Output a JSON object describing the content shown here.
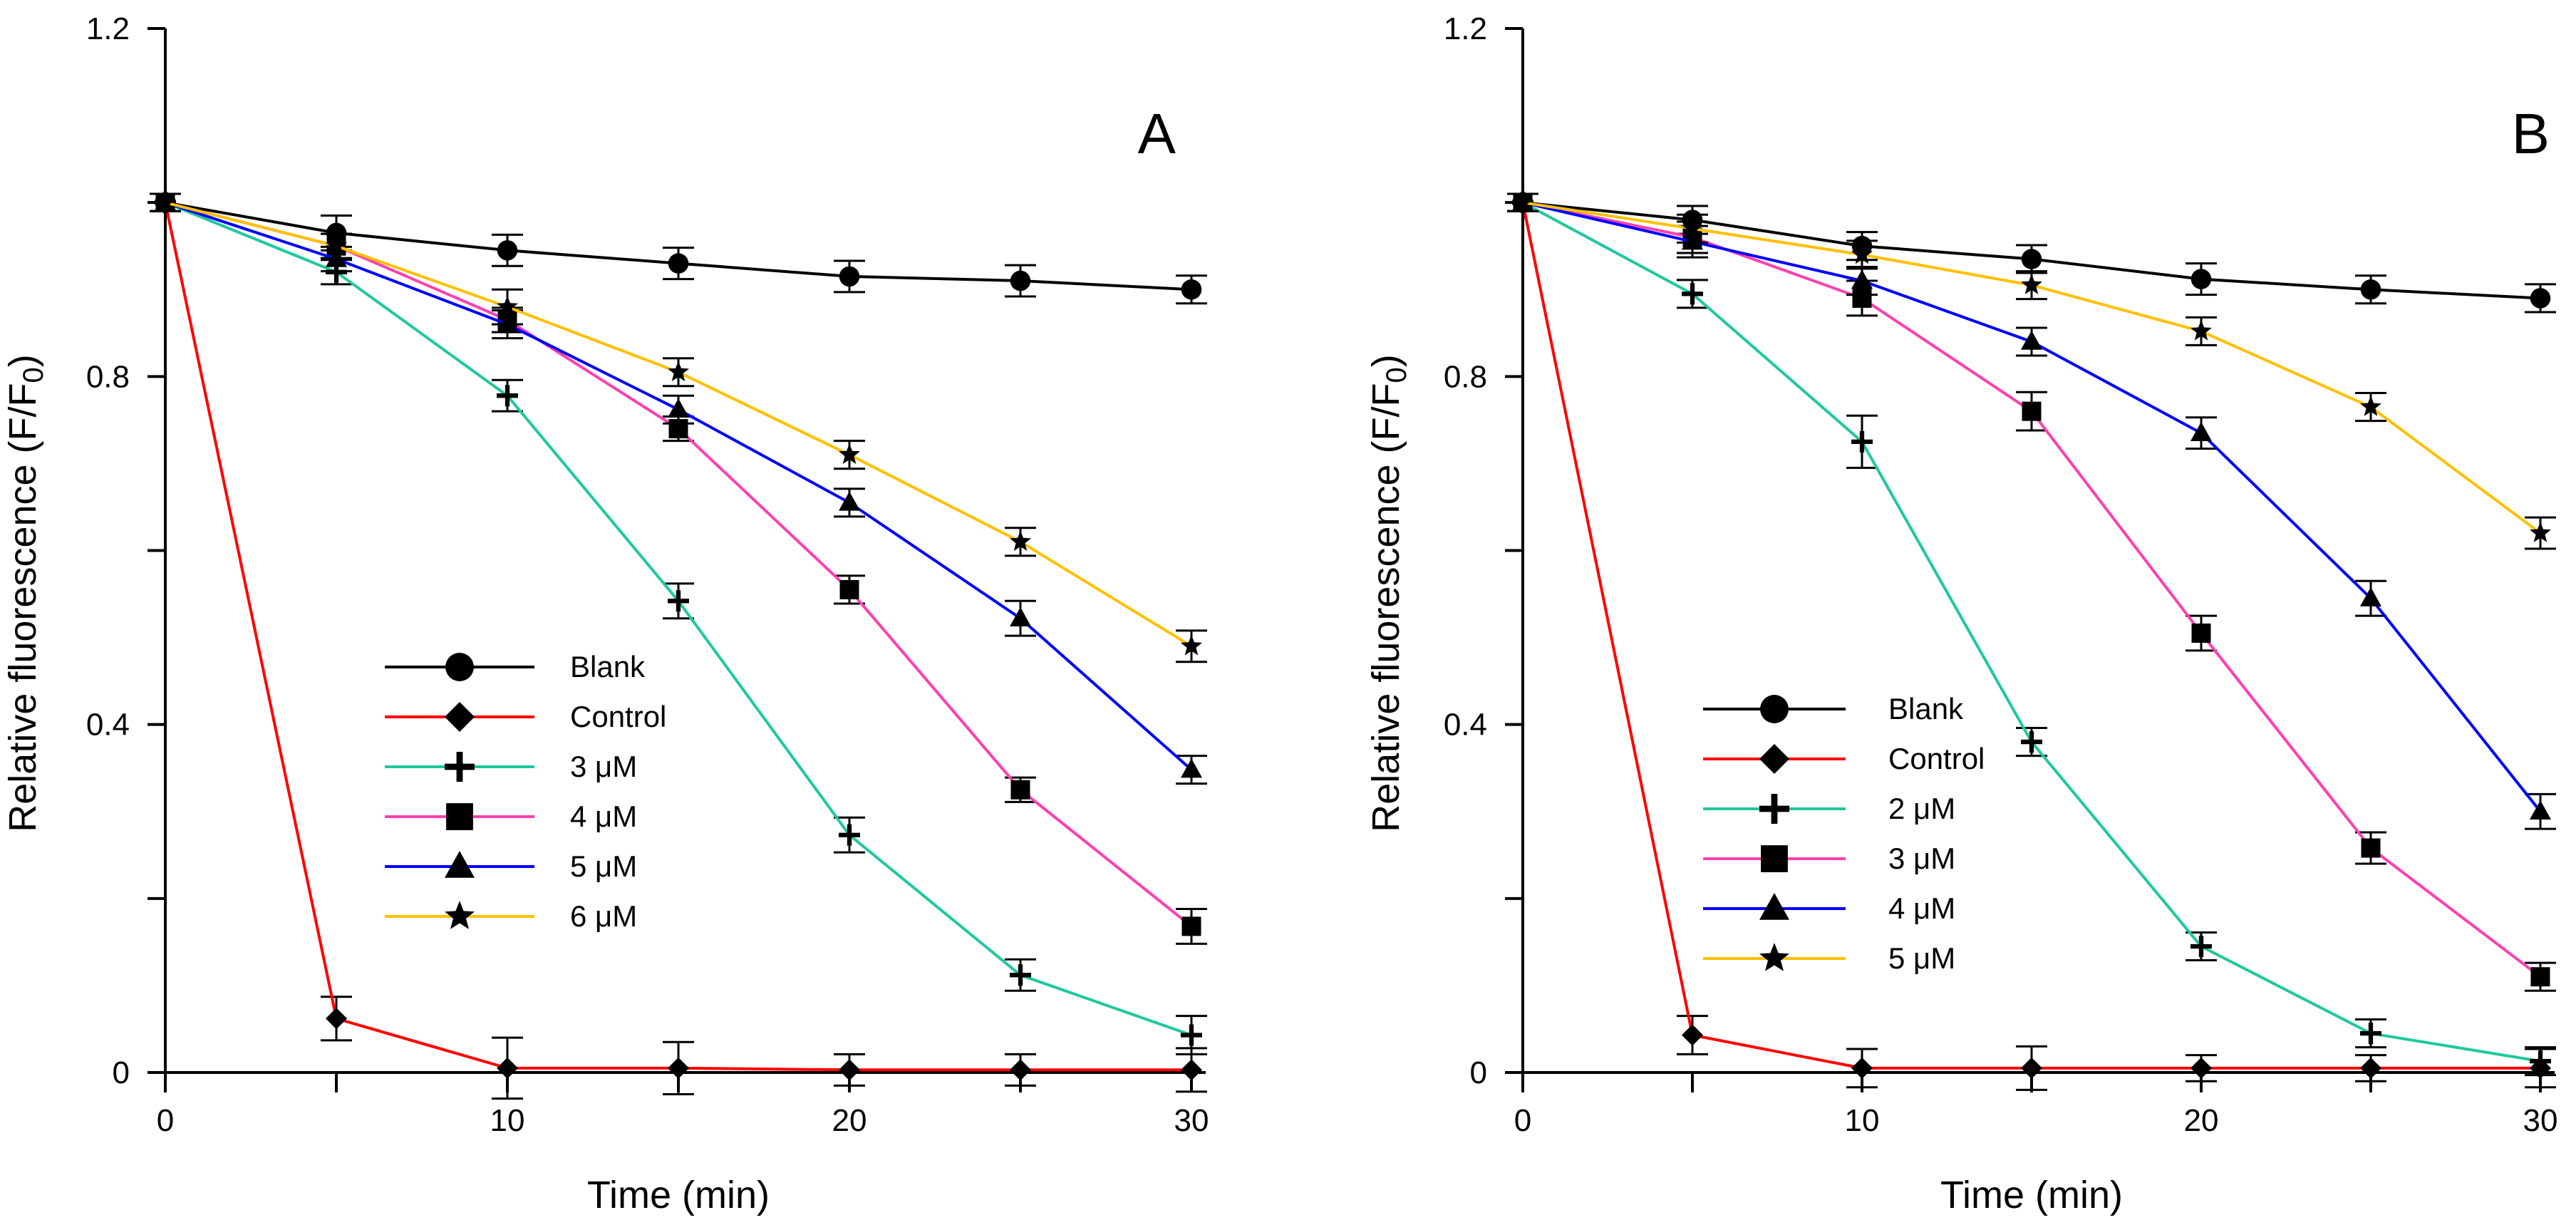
{
  "chart_data": [
    {
      "type": "line",
      "panel_label": "A",
      "xlabel": "Time (min)",
      "ylabel": "Relative fluorescence (F/F",
      "ylabel_sub": "0",
      "ylabel_close": ")",
      "x": [
        0,
        5,
        10,
        15,
        20,
        25,
        30
      ],
      "xlim": [
        0,
        30
      ],
      "ylim": [
        0,
        1.2
      ],
      "xticks": [
        0,
        10,
        20,
        30
      ],
      "xtick_labels": [
        "0",
        "10",
        "20",
        "30"
      ],
      "yticks": [
        0,
        0.4,
        0.8,
        1.2
      ],
      "ytick_labels": [
        "0",
        "0.4",
        "0.8",
        "1.2"
      ],
      "legend_position": "center",
      "series": [
        {
          "name": "Blank",
          "color": "#000000",
          "marker": "circle",
          "values": [
            1.0,
            0.965,
            0.945,
            0.93,
            0.915,
            0.91,
            0.9
          ],
          "errors": [
            0.01,
            0.02,
            0.018,
            0.018,
            0.018,
            0.018,
            0.016
          ]
        },
        {
          "name": "Control",
          "color": "#ff0000",
          "marker": "diamond",
          "values": [
            1.0,
            0.062,
            0.005,
            0.005,
            0.003,
            0.003,
            0.003
          ],
          "errors": [
            0.01,
            0.025,
            0.035,
            0.03,
            0.018,
            0.018,
            0.025
          ]
        },
        {
          "name": "3 μM",
          "color": "#1fc8a0",
          "marker": "plus",
          "values": [
            1.0,
            0.92,
            0.778,
            0.542,
            0.273,
            0.112,
            0.043
          ],
          "errors": [
            0.01,
            0.014,
            0.018,
            0.02,
            0.02,
            0.018,
            0.022
          ]
        },
        {
          "name": "4 μM",
          "color": "#ff3fb0",
          "marker": "square",
          "values": [
            1.0,
            0.95,
            0.865,
            0.74,
            0.555,
            0.325,
            0.168
          ],
          "errors": [
            0.01,
            0.014,
            0.014,
            0.014,
            0.016,
            0.014,
            0.02
          ]
        },
        {
          "name": "5 μM",
          "color": "#0000ff",
          "marker": "triangle",
          "values": [
            1.0,
            0.935,
            0.86,
            0.762,
            0.655,
            0.522,
            0.348
          ],
          "errors": [
            0.01,
            0.014,
            0.016,
            0.016,
            0.016,
            0.02,
            0.016
          ]
        },
        {
          "name": "6 μM",
          "color": "#ffc000",
          "marker": "star",
          "values": [
            1.0,
            0.95,
            0.88,
            0.805,
            0.71,
            0.61,
            0.49
          ],
          "errors": [
            0.01,
            0.014,
            0.02,
            0.016,
            0.016,
            0.016,
            0.018
          ]
        }
      ]
    },
    {
      "type": "line",
      "panel_label": "B",
      "xlabel": "Time (min)",
      "ylabel": "Relative fluorescence (F/F",
      "ylabel_sub": "0",
      "ylabel_close": ")",
      "x": [
        0,
        5,
        10,
        15,
        20,
        25,
        30
      ],
      "xlim": [
        0,
        30
      ],
      "ylim": [
        0,
        1.2
      ],
      "xticks": [
        0,
        10,
        20,
        30
      ],
      "xtick_labels": [
        "0",
        "10",
        "20",
        "30"
      ],
      "yticks": [
        0,
        0.4,
        0.8,
        1.2
      ],
      "ytick_labels": [
        "0",
        "0.4",
        "0.8",
        "1.2"
      ],
      "legend_position": "center-left",
      "series": [
        {
          "name": "Blank",
          "color": "#000000",
          "marker": "circle",
          "values": [
            1.0,
            0.98,
            0.95,
            0.935,
            0.912,
            0.9,
            0.89
          ],
          "errors": [
            0.01,
            0.016,
            0.016,
            0.016,
            0.018,
            0.016,
            0.016
          ]
        },
        {
          "name": "Control",
          "color": "#ff0000",
          "marker": "diamond",
          "values": [
            1.0,
            0.043,
            0.005,
            0.005,
            0.005,
            0.005,
            0.005
          ],
          "errors": [
            0.01,
            0.022,
            0.022,
            0.025,
            0.015,
            0.015,
            0.022
          ]
        },
        {
          "name": "2 μM",
          "color": "#1fc8a0",
          "marker": "plus",
          "values": [
            1.0,
            0.895,
            0.725,
            0.38,
            0.145,
            0.045,
            0.013
          ],
          "errors": [
            0.01,
            0.016,
            0.03,
            0.016,
            0.016,
            0.016,
            0.016
          ]
        },
        {
          "name": "3 μM",
          "color": "#ff3fb0",
          "marker": "square",
          "values": [
            1.0,
            0.96,
            0.89,
            0.76,
            0.505,
            0.258,
            0.11
          ],
          "errors": [
            0.01,
            0.018,
            0.02,
            0.022,
            0.02,
            0.018,
            0.016
          ]
        },
        {
          "name": "4 μM",
          "color": "#0000ff",
          "marker": "triangle",
          "values": [
            1.0,
            0.955,
            0.91,
            0.84,
            0.735,
            0.545,
            0.3
          ],
          "errors": [
            0.01,
            0.018,
            0.016,
            0.016,
            0.018,
            0.02,
            0.02
          ]
        },
        {
          "name": "5 μM",
          "color": "#ffc000",
          "marker": "star",
          "values": [
            1.0,
            0.97,
            0.94,
            0.905,
            0.852,
            0.765,
            0.62
          ],
          "errors": [
            0.01,
            0.016,
            0.016,
            0.016,
            0.016,
            0.016,
            0.018
          ]
        }
      ]
    }
  ]
}
